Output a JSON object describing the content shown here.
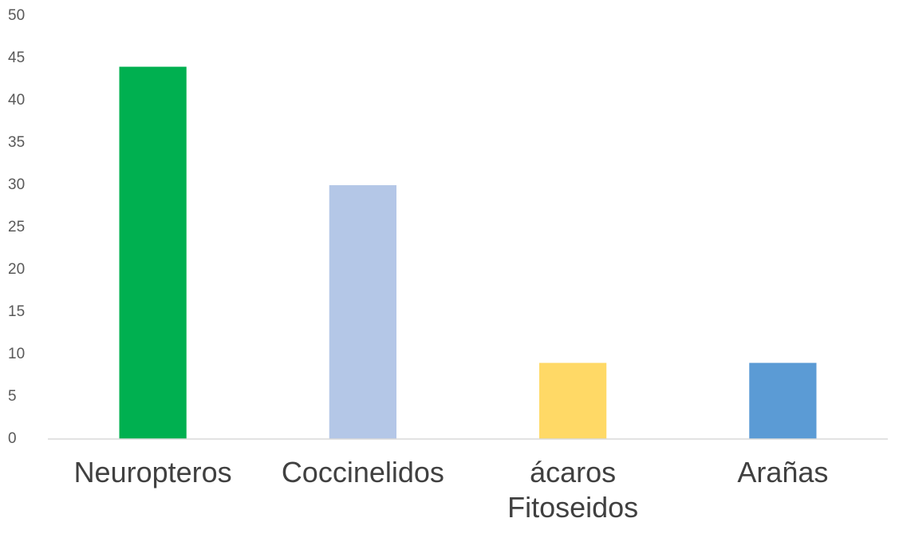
{
  "chart_data": {
    "type": "bar",
    "title": "",
    "xlabel": "",
    "ylabel": "",
    "categories": [
      [
        "Neuropteros"
      ],
      [
        "Coccinelidos"
      ],
      [
        "ácaros",
        "Fitoseidos"
      ],
      [
        "Arañas"
      ]
    ],
    "values": [
      44,
      30,
      9,
      9
    ],
    "colors": [
      "#00b050",
      "#b4c7e7",
      "#ffd966",
      "#5b9bd5"
    ],
    "ylim": [
      0,
      50
    ],
    "yticks": [
      "0",
      "5",
      "10",
      "15",
      "20",
      "25",
      "30",
      "35",
      "40",
      "45",
      "50"
    ],
    "grid": false,
    "legend": "none"
  }
}
